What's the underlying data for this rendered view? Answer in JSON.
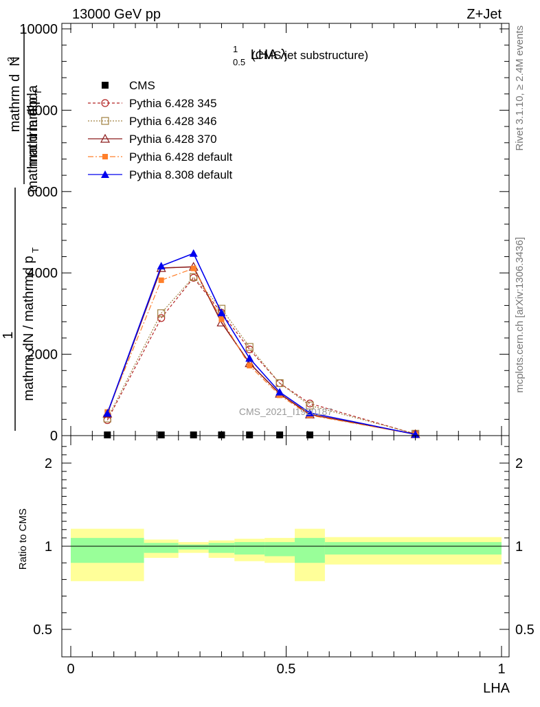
{
  "header": {
    "left": "13000 GeV pp",
    "right": "Z+Jet"
  },
  "side_labels": {
    "rivet": "Rivet 3.1.10, ≥ 2.4M events",
    "mcplots": "mcplots.cern.ch [arXiv:1306.3436]"
  },
  "watermark": "CMS_2021_I1920187",
  "colors": {
    "cms": "#000000",
    "p345": "#b22222",
    "p346": "#a08040",
    "p370": "#8b1a1a",
    "p6def": "#ff7f2a",
    "p8def": "#0000ee",
    "band_outer": "#ffff99",
    "band_inner": "#99ff99"
  },
  "chart_data": [
    {
      "type": "line",
      "title": "LHA λ",
      "title_sup": "1",
      "title_sub": "0.5",
      "title_suffix": "(CMS jet substructure)",
      "ylabel_top": "mathrm d",
      "ylabel_top_sup": "2",
      "ylabel_top_tail": "N",
      "ylabel_bottom": "mathrm d p",
      "ylabel_bottom_sub": "T",
      "ylabel_bottom_tail": "mathrm d lambda",
      "ylabel_left_prefix": "1",
      "ylabel_left_den": "mathrm dN / mathrmd p",
      "ylabel_left_den_sub": "T",
      "xlim": [
        0,
        1
      ],
      "ylim": [
        0,
        10000
      ],
      "yticks": [
        0,
        2000,
        4000,
        6000,
        8000,
        10000
      ],
      "ytick_labels": [
        "0",
        "2000",
        "4000",
        "6000",
        "8000",
        "10000"
      ],
      "x": [
        0.085,
        0.21,
        0.285,
        0.35,
        0.415,
        0.485,
        0.555,
        0.8
      ],
      "legend_position": "top-left",
      "series": [
        {
          "name": "CMS",
          "key": "cms",
          "marker": "square",
          "dash": "none",
          "values": [
            0,
            0,
            0,
            0,
            0,
            0,
            0,
            null
          ]
        },
        {
          "name": "Pythia 6.428 345",
          "key": "p345",
          "marker": "circle-open",
          "dash": "4,3",
          "values": [
            380,
            2890,
            3880,
            3020,
            2120,
            1290,
            790,
            40
          ]
        },
        {
          "name": "Pythia 6.428 346",
          "key": "p346",
          "marker": "square-open",
          "dash": "2,2",
          "values": [
            420,
            3010,
            3900,
            3120,
            2180,
            1290,
            740,
            45
          ]
        },
        {
          "name": "Pythia 6.428 370",
          "key": "p370",
          "marker": "triangle-open",
          "dash": "none",
          "values": [
            540,
            4120,
            4150,
            2780,
            1780,
            1030,
            520,
            35
          ]
        },
        {
          "name": "Pythia 6.428 default",
          "key": "p6def",
          "marker": "square-filled",
          "dash": "8,3,2,3",
          "values": [
            580,
            3820,
            4110,
            2860,
            1720,
            990,
            500,
            30
          ]
        },
        {
          "name": "Pythia 8.308 default",
          "key": "p8def",
          "marker": "triangle-filled",
          "dash": "none",
          "values": [
            550,
            4170,
            4480,
            3020,
            1900,
            1070,
            560,
            30
          ]
        }
      ]
    },
    {
      "type": "area",
      "ylabel": "Ratio to CMS",
      "xlabel": "LHA",
      "xlim": [
        0,
        1
      ],
      "ylim": [
        0.4,
        2.3
      ],
      "yticks": [
        0.5,
        1,
        2
      ],
      "ytick_labels": [
        "0.5",
        "1",
        "2"
      ],
      "xticks": [
        0,
        0.5,
        1
      ],
      "xtick_labels": [
        "0",
        "0.5",
        "1"
      ],
      "reference": 1,
      "bins": [
        {
          "x0": 0.0,
          "x1": 0.17,
          "inner": [
            0.9,
            1.1
          ],
          "outer": [
            0.79,
            1.21
          ]
        },
        {
          "x0": 0.17,
          "x1": 0.25,
          "inner": [
            0.96,
            1.04
          ],
          "outer": [
            0.93,
            1.08
          ]
        },
        {
          "x0": 0.25,
          "x1": 0.32,
          "inner": [
            0.98,
            1.02
          ],
          "outer": [
            0.96,
            1.05
          ]
        },
        {
          "x0": 0.32,
          "x1": 0.38,
          "inner": [
            0.96,
            1.04
          ],
          "outer": [
            0.93,
            1.07
          ]
        },
        {
          "x0": 0.38,
          "x1": 0.45,
          "inner": [
            0.95,
            1.05
          ],
          "outer": [
            0.91,
            1.09
          ]
        },
        {
          "x0": 0.45,
          "x1": 0.52,
          "inner": [
            0.94,
            1.05
          ],
          "outer": [
            0.9,
            1.1
          ]
        },
        {
          "x0": 0.52,
          "x1": 0.59,
          "inner": [
            0.9,
            1.1
          ],
          "outer": [
            0.79,
            1.21
          ]
        },
        {
          "x0": 0.59,
          "x1": 1.0,
          "inner": [
            0.95,
            1.05
          ],
          "outer": [
            0.89,
            1.11
          ]
        }
      ]
    }
  ]
}
